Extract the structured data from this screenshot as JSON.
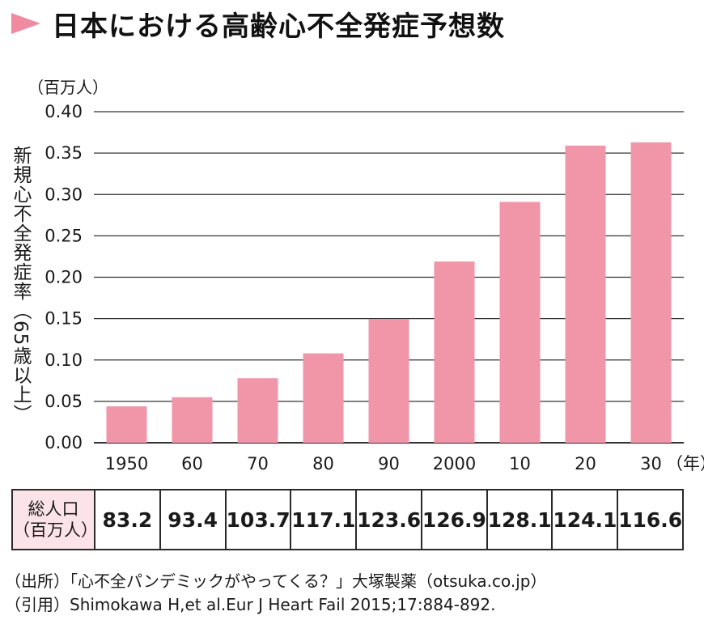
{
  "title": "日本における高齢心不全発症予想数",
  "colors": {
    "bar": "#f096a8",
    "title_arrow": "#f08aa0",
    "table_head_bg": "#fbe3e9",
    "grid": "#333333"
  },
  "chart_data": {
    "type": "bar",
    "title": "日本における高齢心不全発症予想数",
    "unit_label": "（百万人）",
    "ylabel": "新規心不全発症率（65歳以上）",
    "xlabel_suffix": "（年）",
    "categories": [
      "1950",
      "60",
      "70",
      "80",
      "90",
      "2000",
      "10",
      "20",
      "30"
    ],
    "values": [
      0.044,
      0.055,
      0.078,
      0.108,
      0.149,
      0.219,
      0.291,
      0.359,
      0.363
    ],
    "ylim": [
      0,
      0.4
    ],
    "yticks": [
      "0.00",
      "0.05",
      "0.10",
      "0.15",
      "0.20",
      "0.25",
      "0.30",
      "0.35",
      "0.40"
    ],
    "grid": true
  },
  "table": {
    "header_line1": "総人口",
    "header_line2": "（百万人）",
    "values": [
      "83.2",
      "93.4",
      "103.7",
      "117.1",
      "123.6",
      "126.9",
      "128.1",
      "124.1",
      "116.6"
    ]
  },
  "source": {
    "line1": "（出所）「心不全パンデミックがやってくる？」大塚製薬（otsuka.co.jp）",
    "line2": "（引用）Shimokawa H,et al.Eur J Heart Fail 2015;17:884-892."
  }
}
